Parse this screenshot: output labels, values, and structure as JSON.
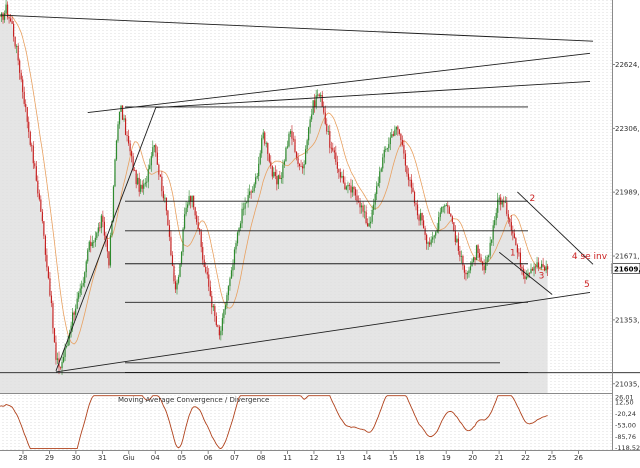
{
  "chart_data": {
    "type": "candlestick",
    "price_axis": {
      "ticks": [
        {
          "value": 22624.5,
          "label": "22624,5"
        },
        {
          "value": 22306.6,
          "label": "22306,6"
        },
        {
          "value": 21989.2,
          "label": "21989,2"
        },
        {
          "value": 21671.3,
          "label": "21671,3"
        },
        {
          "value": 21353.6,
          "label": "21353,6"
        },
        {
          "value": 21035.8,
          "label": "21035,8"
        }
      ],
      "last_price": {
        "value": 21609.8,
        "label": "21609,8"
      },
      "range": [
        20990,
        22945
      ]
    },
    "x_axis": {
      "ticks": [
        "28",
        "29",
        "30",
        "31",
        "Giu",
        "04",
        "05",
        "06",
        "07",
        "08",
        "11",
        "12",
        "13",
        "14",
        "15",
        "18",
        "19",
        "20",
        "21",
        "22",
        "25",
        "26"
      ],
      "bar_range": [
        0,
        390
      ]
    },
    "ohlc_bars": [],
    "annotations": [
      {
        "text": "1",
        "color": "#cc2222"
      },
      {
        "text": "2",
        "color": "#cc2222"
      },
      {
        "text": "3",
        "color": "#cc2222"
      },
      {
        "text": "4 se inv",
        "color": "#cc2222"
      },
      {
        "text": "5",
        "color": "#cc2222"
      }
    ],
    "horizontal_levels": [
      22413,
      21944,
      21797,
      21633,
      21441,
      21140,
      21092
    ],
    "indicator": {
      "title": "Moving Average Convergence / Divergence",
      "ticks": [
        {
          "value": 26.01,
          "label": "26,01"
        },
        {
          "value": 12.5,
          "label": "12,50"
        },
        {
          "value": -20.24,
          "label": "-20,24"
        },
        {
          "value": -53.0,
          "label": "-53,00"
        },
        {
          "value": -85.76,
          "label": "-85,76"
        },
        {
          "value": -118.52,
          "label": "-118,52"
        }
      ],
      "range": [
        -125,
        32
      ]
    },
    "grid": true
  },
  "colors": {
    "up": "#2d8a2d",
    "down": "#c42020",
    "area": "#e1e1e1",
    "signal": "#e8a060",
    "macd": "#b0421c",
    "trend": "#1e1e1e",
    "grid": "#bdbdbd",
    "label": "#cc2222"
  }
}
